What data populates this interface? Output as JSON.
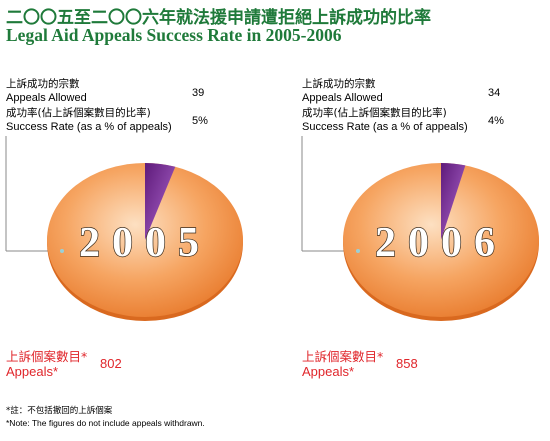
{
  "title": {
    "zh": "二〇〇五至二〇〇六年就法援申請遭拒絕上訴成功的比率",
    "en": "Legal Aid Appeals Success Rate in 2005-2006"
  },
  "labels": {
    "allowed_zh": "上訴成功的宗數",
    "allowed_en": "Appeals Allowed",
    "rate_zh": "成功率(佔上訴個案數目的比率)",
    "rate_en": "Success Rate (as a % of appeals)",
    "appeals_zh": "上訴個案數目*",
    "appeals_en": "Appeals*"
  },
  "chart_data": [
    {
      "type": "pie",
      "year": "2005",
      "appeals_allowed": "39",
      "success_rate": "5%",
      "appeals": "802",
      "slices": [
        5,
        95
      ],
      "colors": [
        "#7a1f8c",
        "#f3924a"
      ]
    },
    {
      "type": "pie",
      "year": "2006",
      "appeals_allowed": "34",
      "success_rate": "4%",
      "appeals": "858",
      "slices": [
        4,
        96
      ],
      "colors": [
        "#7a1f8c",
        "#f3924a"
      ]
    }
  ],
  "notes": {
    "zh": "*註：不包括撤回的上訴個案",
    "en": "*Note: The figures do not include appeals withdrawn."
  }
}
